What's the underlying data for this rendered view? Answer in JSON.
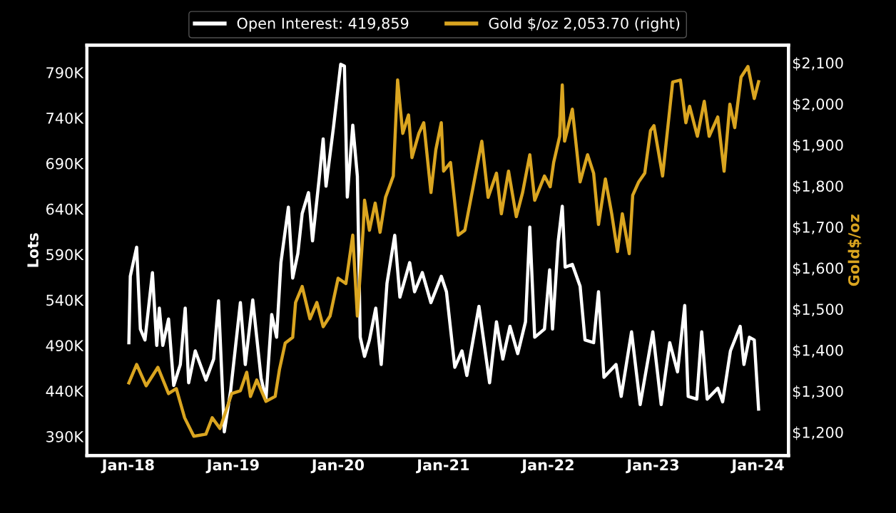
{
  "chart_data": {
    "type": "line",
    "ylabel": "Lots",
    "y2label": "Gold$/oz",
    "legend": "top",
    "grid": false,
    "marker": "none",
    "line_style": "solid",
    "xlim": [
      "2017-08-10",
      "2024-04-16"
    ],
    "xticks": [
      {
        "value": "2018-01-01",
        "label": "Jan-18"
      },
      {
        "value": "2019-01-01",
        "label": "Jan-19"
      },
      {
        "value": "2020-01-01",
        "label": "Jan-20"
      },
      {
        "value": "2021-01-01",
        "label": "Jan-21"
      },
      {
        "value": "2022-01-01",
        "label": "Jan-22"
      },
      {
        "value": "2023-01-01",
        "label": "Jan-23"
      },
      {
        "value": "2024-01-01",
        "label": "Jan-24"
      }
    ],
    "ylim": [
      369000,
      820000
    ],
    "yticks": [
      {
        "value": 390000,
        "label": "390K"
      },
      {
        "value": 440000,
        "label": "440K"
      },
      {
        "value": 490000,
        "label": "490K"
      },
      {
        "value": 540000,
        "label": "540K"
      },
      {
        "value": 590000,
        "label": "590K"
      },
      {
        "value": 640000,
        "label": "640K"
      },
      {
        "value": 690000,
        "label": "690K"
      },
      {
        "value": 740000,
        "label": "740K"
      },
      {
        "value": 790000,
        "label": "790K"
      }
    ],
    "y2lim": [
      1143,
      2143
    ],
    "y2ticks": [
      {
        "value": 1200,
        "label": "$1,200"
      },
      {
        "value": 1300,
        "label": "$1,300"
      },
      {
        "value": 1400,
        "label": "$1,400"
      },
      {
        "value": 1500,
        "label": "$1,500"
      },
      {
        "value": 1600,
        "label": "$1,600"
      },
      {
        "value": 1700,
        "label": "$1,700"
      },
      {
        "value": 1800,
        "label": "$1,800"
      },
      {
        "value": 1900,
        "label": "$1,900"
      },
      {
        "value": 2000,
        "label": "$2,000"
      },
      {
        "value": 2100,
        "label": "$2,100"
      }
    ],
    "series": [
      {
        "name": "Open Interest: 419,859",
        "color": "#ffffff",
        "x": [
          "2018-01-03",
          "2018-01-08",
          "2018-01-30",
          "2018-02-12",
          "2018-02-28",
          "2018-03-26",
          "2018-04-10",
          "2018-04-19",
          "2018-05-01",
          "2018-05-21",
          "2018-06-08",
          "2018-07-01",
          "2018-07-18",
          "2018-07-30",
          "2018-08-22",
          "2018-09-28",
          "2018-10-25",
          "2018-11-11",
          "2018-12-01",
          "2018-12-23",
          "2019-01-26",
          "2019-02-12",
          "2019-03-10",
          "2019-04-08",
          "2019-04-25",
          "2019-05-15",
          "2019-06-01",
          "2019-06-16",
          "2019-07-12",
          "2019-07-27",
          "2019-08-14",
          "2019-08-29",
          "2019-09-20",
          "2019-10-04",
          "2019-10-28",
          "2019-11-10",
          "2019-11-20",
          "2019-12-16",
          "2020-01-10",
          "2020-01-23",
          "2020-02-02",
          "2020-02-21",
          "2020-03-08",
          "2020-03-18",
          "2020-04-02",
          "2020-04-19",
          "2020-05-11",
          "2020-05-30",
          "2020-06-19",
          "2020-07-16",
          "2020-08-03",
          "2020-09-06",
          "2020-09-23",
          "2020-10-20",
          "2020-11-19",
          "2020-12-25",
          "2021-01-12",
          "2021-02-10",
          "2021-03-07",
          "2021-03-24",
          "2021-05-05",
          "2021-05-20",
          "2021-06-11",
          "2021-07-05",
          "2021-07-27",
          "2021-08-21",
          "2021-09-17",
          "2021-10-14",
          "2021-10-29",
          "2021-11-15",
          "2021-12-19",
          "2022-01-06",
          "2022-01-16",
          "2022-02-05",
          "2022-02-19",
          "2022-03-01",
          "2022-03-26",
          "2022-04-22",
          "2022-05-09",
          "2022-06-08",
          "2022-06-25",
          "2022-07-14",
          "2022-08-25",
          "2022-09-12",
          "2022-10-18",
          "2022-11-17",
          "2022-12-31",
          "2023-01-29",
          "2023-02-28",
          "2023-03-27",
          "2023-04-21",
          "2023-05-03",
          "2023-06-02",
          "2023-06-19",
          "2023-07-08",
          "2023-08-14",
          "2023-08-31",
          "2023-09-27",
          "2023-10-31",
          "2023-11-13",
          "2023-12-02",
          "2023-12-19",
          "2024-01-03"
        ],
        "values": [
          493000,
          566000,
          598000,
          508000,
          496000,
          570000,
          490000,
          531000,
          490000,
          519000,
          446000,
          469000,
          531000,
          449000,
          484000,
          452000,
          475000,
          539000,
          395000,
          440000,
          537000,
          469000,
          540000,
          454000,
          431000,
          524000,
          499000,
          581000,
          642000,
          564000,
          591000,
          635000,
          658000,
          605000,
          676000,
          717000,
          665000,
          730000,
          799000,
          797000,
          653000,
          732000,
          676000,
          499000,
          478000,
          496000,
          531000,
          469000,
          558000,
          611000,
          543000,
          581000,
          549000,
          570000,
          537000,
          566000,
          549000,
          466000,
          484000,
          457000,
          533000,
          499000,
          449000,
          516000,
          475000,
          511000,
          481000,
          516000,
          620000,
          499000,
          508000,
          573000,
          508000,
          605000,
          643000,
          576000,
          579000,
          555000,
          496000,
          493000,
          549000,
          455000,
          469000,
          434000,
          505000,
          425000,
          505000,
          425000,
          493000,
          461000,
          534000,
          434000,
          431000,
          505000,
          431000,
          443000,
          428000,
          484000,
          511000,
          469000,
          499000,
          496000,
          420000
        ]
      },
      {
        "name": "Gold $/oz 2,053.70 (right)",
        "color": "#daa520",
        "axis": "y2",
        "x": [
          "2018-01-03",
          "2018-01-30",
          "2018-03-04",
          "2018-04-14",
          "2018-05-21",
          "2018-06-17",
          "2018-07-16",
          "2018-08-17",
          "2018-09-28",
          "2018-10-20",
          "2018-11-16",
          "2018-12-27",
          "2019-01-26",
          "2019-02-17",
          "2019-03-02",
          "2019-03-24",
          "2019-04-25",
          "2019-05-27",
          "2019-06-11",
          "2019-07-01",
          "2019-07-27",
          "2019-08-06",
          "2019-08-29",
          "2019-09-25",
          "2019-10-19",
          "2019-11-10",
          "2019-12-04",
          "2020-01-01",
          "2020-01-28",
          "2020-02-21",
          "2020-03-08",
          "2020-03-28",
          "2020-04-02",
          "2020-04-19",
          "2020-05-09",
          "2020-05-26",
          "2020-06-14",
          "2020-07-11",
          "2020-07-26",
          "2020-08-13",
          "2020-09-02",
          "2020-09-14",
          "2020-10-08",
          "2020-10-25",
          "2020-11-19",
          "2020-12-06",
          "2020-12-25",
          "2021-01-02",
          "2021-01-26",
          "2021-02-22",
          "2021-03-17",
          "2021-04-13",
          "2021-05-15",
          "2021-06-06",
          "2021-07-05",
          "2021-07-22",
          "2021-08-16",
          "2021-09-12",
          "2021-10-04",
          "2021-10-29",
          "2021-11-15",
          "2021-12-19",
          "2022-01-08",
          "2022-01-20",
          "2022-02-10",
          "2022-02-19",
          "2022-02-27",
          "2022-03-26",
          "2022-04-22",
          "2022-05-18",
          "2022-06-08",
          "2022-06-25",
          "2022-07-19",
          "2022-08-10",
          "2022-08-30",
          "2022-09-16",
          "2022-10-10",
          "2022-10-22",
          "2022-11-12",
          "2022-12-03",
          "2022-12-23",
          "2023-01-04",
          "2023-02-03",
          "2023-02-20",
          "2023-03-10",
          "2023-04-06",
          "2023-04-25",
          "2023-05-08",
          "2023-06-04",
          "2023-06-28",
          "2023-07-15",
          "2023-08-14",
          "2023-09-05",
          "2023-09-25",
          "2023-10-12",
          "2023-11-03",
          "2023-11-27",
          "2023-12-19",
          "2024-01-03"
        ],
        "values": [
          1320,
          1365,
          1313,
          1358,
          1294,
          1306,
          1235,
          1190,
          1195,
          1235,
          1209,
          1294,
          1301,
          1346,
          1287,
          1327,
          1275,
          1287,
          1353,
          1417,
          1431,
          1516,
          1555,
          1476,
          1516,
          1457,
          1483,
          1575,
          1562,
          1680,
          1483,
          1692,
          1765,
          1692,
          1758,
          1687,
          1772,
          1824,
          2058,
          1928,
          1973,
          1869,
          1928,
          1954,
          1784,
          1888,
          1954,
          1836,
          1857,
          1680,
          1692,
          1791,
          1909,
          1772,
          1831,
          1732,
          1836,
          1725,
          1784,
          1876,
          1765,
          1824,
          1798,
          1857,
          1921,
          2046,
          1909,
          1987,
          1810,
          1876,
          1831,
          1706,
          1817,
          1732,
          1640,
          1732,
          1635,
          1777,
          1810,
          1831,
          1935,
          1947,
          1824,
          1935,
          2053,
          2058,
          1954,
          1994,
          1921,
          2006,
          1921,
          1968,
          1836,
          1999,
          1942,
          2065,
          2091,
          2013,
          2054
        ]
      }
    ]
  }
}
